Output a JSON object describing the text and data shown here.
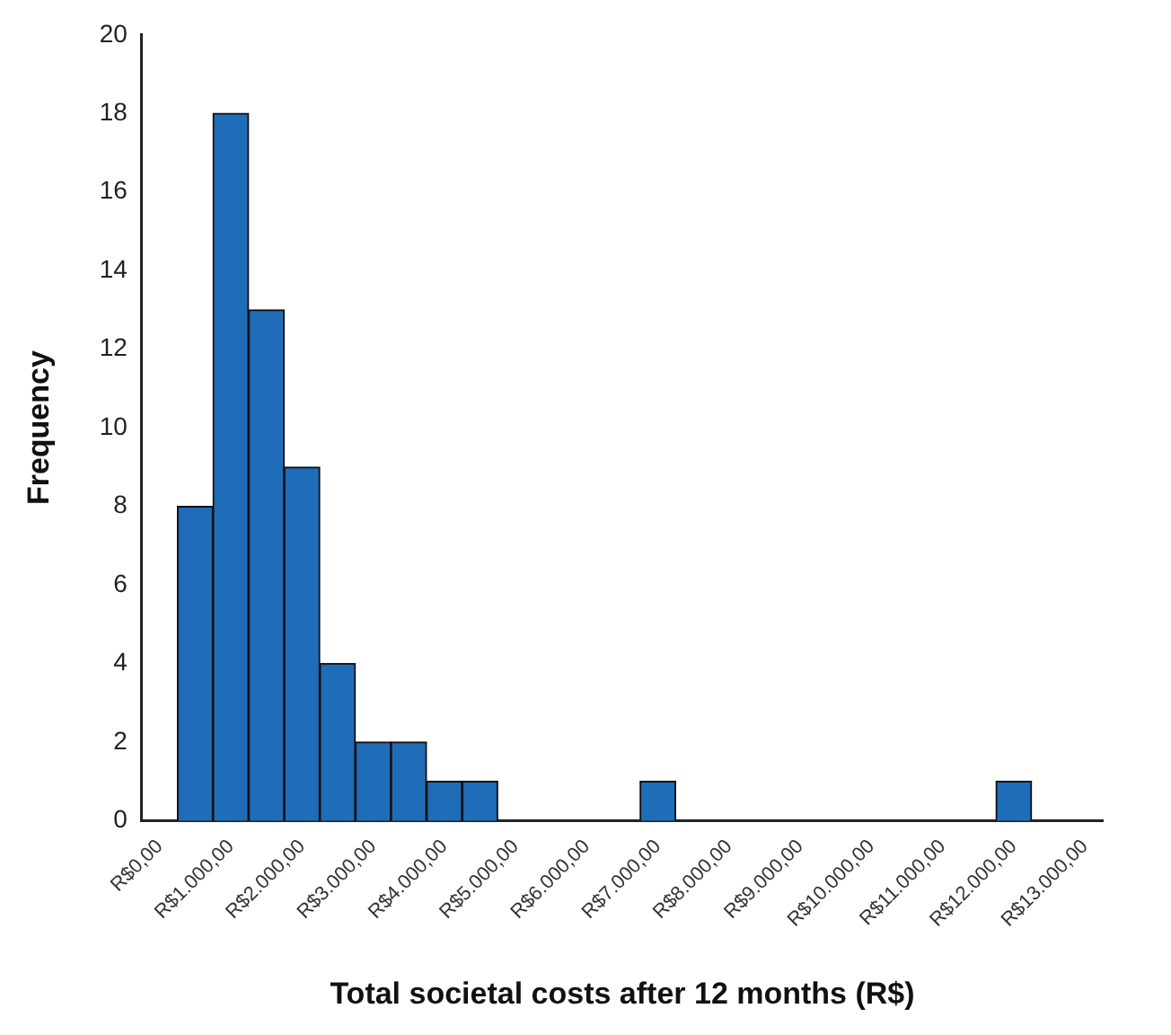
{
  "chart_data": {
    "type": "bar",
    "xlabel": "Total societal costs after 12 months (R$)",
    "ylabel": "Frequency",
    "categories": [
      "R$0,00",
      null,
      "R$1.000,00",
      null,
      "R$2.000,00",
      null,
      "R$3.000,00",
      null,
      "R$4.000,00",
      null,
      "R$5.000,00",
      null,
      "R$6.000,00",
      null,
      "R$7.000,00",
      null,
      "R$8.000,00",
      null,
      "R$9.000,00",
      null,
      "R$10.000,00",
      null,
      "R$11.000,00",
      null,
      "R$12.000,00",
      null,
      "R$13.000,00"
    ],
    "values": [
      0,
      8,
      18,
      13,
      9,
      4,
      2,
      2,
      1,
      1,
      0,
      0,
      0,
      0,
      1,
      0,
      0,
      0,
      0,
      0,
      0,
      0,
      0,
      0,
      1,
      0,
      0
    ],
    "color": "#1f6db8",
    "ylim": [
      0,
      20
    ],
    "yticks": [
      0,
      2,
      4,
      6,
      8,
      10,
      12,
      14,
      16,
      18,
      20
    ],
    "grid": false,
    "legend": false
  }
}
